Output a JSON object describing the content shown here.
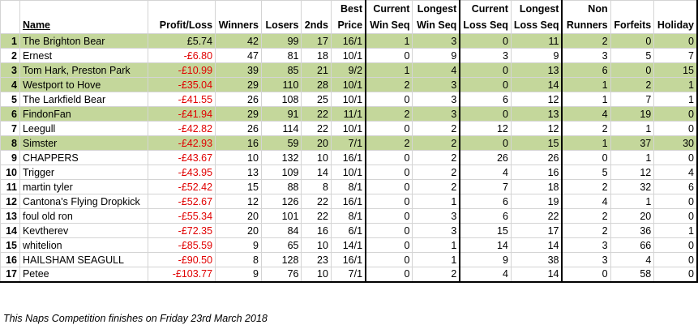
{
  "headers": {
    "rank": "",
    "name": "Name",
    "profit": "Profit/Loss",
    "winners": "Winners",
    "losers": "Losers",
    "seconds": "2nds",
    "best_price": [
      "Best",
      "Price"
    ],
    "cur_win": [
      "Current",
      "Win Seq"
    ],
    "long_win": [
      "Longest",
      "Win Seq"
    ],
    "cur_loss": [
      "Current",
      "Loss Seq"
    ],
    "long_loss": [
      "Longest",
      "Loss Seq"
    ],
    "non_runners": [
      "Non",
      "Runners"
    ],
    "forfeits": [
      "",
      "Forfeits"
    ],
    "holiday": [
      "",
      "Holiday"
    ]
  },
  "rows": [
    {
      "rank": "1",
      "name": "The Brighton Bear",
      "profit": "£5.74",
      "negative": false,
      "highlight": true,
      "winners": "42",
      "losers": "99",
      "seconds": "17",
      "best_price": "16/1",
      "cur_win": "1",
      "long_win": "3",
      "cur_loss": "0",
      "long_loss": "11",
      "non_runners": "2",
      "forfeits": "0",
      "holiday": "0"
    },
    {
      "rank": "2",
      "name": "Ernest",
      "profit": "-£6.80",
      "negative": true,
      "highlight": false,
      "winners": "47",
      "losers": "81",
      "seconds": "18",
      "best_price": "10/1",
      "cur_win": "0",
      "long_win": "9",
      "cur_loss": "3",
      "long_loss": "9",
      "non_runners": "3",
      "forfeits": "5",
      "holiday": "7"
    },
    {
      "rank": "3",
      "name": "Tom Hark, Preston Park",
      "profit": "-£10.99",
      "negative": true,
      "highlight": true,
      "winners": "39",
      "losers": "85",
      "seconds": "21",
      "best_price": "9/2",
      "cur_win": "1",
      "long_win": "4",
      "cur_loss": "0",
      "long_loss": "13",
      "non_runners": "6",
      "forfeits": "0",
      "holiday": "15"
    },
    {
      "rank": "4",
      "name": "Westport to Hove",
      "profit": "-£35.04",
      "negative": true,
      "highlight": true,
      "winners": "29",
      "losers": "110",
      "seconds": "28",
      "best_price": "10/1",
      "cur_win": "2",
      "long_win": "3",
      "cur_loss": "0",
      "long_loss": "14",
      "non_runners": "1",
      "forfeits": "2",
      "holiday": "1"
    },
    {
      "rank": "5",
      "name": "The Larkfield Bear",
      "profit": "-£41.55",
      "negative": true,
      "highlight": false,
      "winners": "26",
      "losers": "108",
      "seconds": "25",
      "best_price": "10/1",
      "cur_win": "0",
      "long_win": "3",
      "cur_loss": "6",
      "long_loss": "12",
      "non_runners": "1",
      "forfeits": "7",
      "holiday": "1"
    },
    {
      "rank": "6",
      "name": "FindonFan",
      "profit": "-£41.94",
      "negative": true,
      "highlight": true,
      "winners": "29",
      "losers": "91",
      "seconds": "22",
      "best_price": "11/1",
      "cur_win": "2",
      "long_win": "3",
      "cur_loss": "0",
      "long_loss": "13",
      "non_runners": "4",
      "forfeits": "19",
      "holiday": "0"
    },
    {
      "rank": "7",
      "name": "Leegull",
      "profit": "-£42.82",
      "negative": true,
      "highlight": false,
      "winners": "26",
      "losers": "114",
      "seconds": "22",
      "best_price": "10/1",
      "cur_win": "0",
      "long_win": "2",
      "cur_loss": "12",
      "long_loss": "12",
      "non_runners": "2",
      "forfeits": "1",
      "holiday": "0"
    },
    {
      "rank": "8",
      "name": "Simster",
      "profit": "-£42.93",
      "negative": true,
      "highlight": true,
      "winners": "16",
      "losers": "59",
      "seconds": "20",
      "best_price": "7/1",
      "cur_win": "2",
      "long_win": "2",
      "cur_loss": "0",
      "long_loss": "15",
      "non_runners": "1",
      "forfeits": "37",
      "holiday": "30"
    },
    {
      "rank": "9",
      "name": "CHAPPERS",
      "profit": "-£43.67",
      "negative": true,
      "highlight": false,
      "winners": "10",
      "losers": "132",
      "seconds": "10",
      "best_price": "16/1",
      "cur_win": "0",
      "long_win": "2",
      "cur_loss": "26",
      "long_loss": "26",
      "non_runners": "0",
      "forfeits": "1",
      "holiday": "0"
    },
    {
      "rank": "10",
      "name": "Trigger",
      "profit": "-£43.95",
      "negative": true,
      "highlight": false,
      "winners": "13",
      "losers": "109",
      "seconds": "14",
      "best_price": "10/1",
      "cur_win": "0",
      "long_win": "2",
      "cur_loss": "4",
      "long_loss": "16",
      "non_runners": "5",
      "forfeits": "12",
      "holiday": "4"
    },
    {
      "rank": "11",
      "name": "martin tyler",
      "profit": "-£52.42",
      "negative": true,
      "highlight": false,
      "winners": "15",
      "losers": "88",
      "seconds": "8",
      "best_price": "8/1",
      "cur_win": "0",
      "long_win": "2",
      "cur_loss": "7",
      "long_loss": "18",
      "non_runners": "2",
      "forfeits": "32",
      "holiday": "6"
    },
    {
      "rank": "12",
      "name": "Cantona's Flying Dropkick",
      "profit": "-£52.67",
      "negative": true,
      "highlight": false,
      "winners": "12",
      "losers": "126",
      "seconds": "22",
      "best_price": "16/1",
      "cur_win": "0",
      "long_win": "1",
      "cur_loss": "6",
      "long_loss": "19",
      "non_runners": "4",
      "forfeits": "1",
      "holiday": "0"
    },
    {
      "rank": "13",
      "name": "foul old ron",
      "profit": "-£55.34",
      "negative": true,
      "highlight": false,
      "winners": "20",
      "losers": "101",
      "seconds": "22",
      "best_price": "8/1",
      "cur_win": "0",
      "long_win": "3",
      "cur_loss": "6",
      "long_loss": "22",
      "non_runners": "2",
      "forfeits": "20",
      "holiday": "0"
    },
    {
      "rank": "14",
      "name": "Kevtherev",
      "profit": "-£72.35",
      "negative": true,
      "highlight": false,
      "winners": "20",
      "losers": "84",
      "seconds": "16",
      "best_price": "6/1",
      "cur_win": "0",
      "long_win": "3",
      "cur_loss": "15",
      "long_loss": "17",
      "non_runners": "2",
      "forfeits": "36",
      "holiday": "1"
    },
    {
      "rank": "15",
      "name": "whitelion",
      "profit": "-£85.59",
      "negative": true,
      "highlight": false,
      "winners": "9",
      "losers": "65",
      "seconds": "10",
      "best_price": "14/1",
      "cur_win": "0",
      "long_win": "1",
      "cur_loss": "14",
      "long_loss": "14",
      "non_runners": "3",
      "forfeits": "66",
      "holiday": "0"
    },
    {
      "rank": "16",
      "name": "HAILSHAM SEAGULL",
      "profit": "-£90.50",
      "negative": true,
      "highlight": false,
      "winners": "8",
      "losers": "128",
      "seconds": "23",
      "best_price": "16/1",
      "cur_win": "0",
      "long_win": "1",
      "cur_loss": "9",
      "long_loss": "38",
      "non_runners": "3",
      "forfeits": "4",
      "holiday": "0"
    },
    {
      "rank": "17",
      "name": "Petee",
      "profit": "-£103.77",
      "negative": true,
      "highlight": false,
      "winners": "9",
      "losers": "76",
      "seconds": "10",
      "best_price": "7/1",
      "cur_win": "0",
      "long_win": "2",
      "cur_loss": "4",
      "long_loss": "14",
      "non_runners": "0",
      "forfeits": "58",
      "holiday": "0"
    }
  ],
  "footnote": "This Naps Competition finishes on Friday 23rd March 2018",
  "colors": {
    "highlight_row": "#c4d79b",
    "negative_text": "#e00000",
    "gridline": "#d4d4d4"
  }
}
